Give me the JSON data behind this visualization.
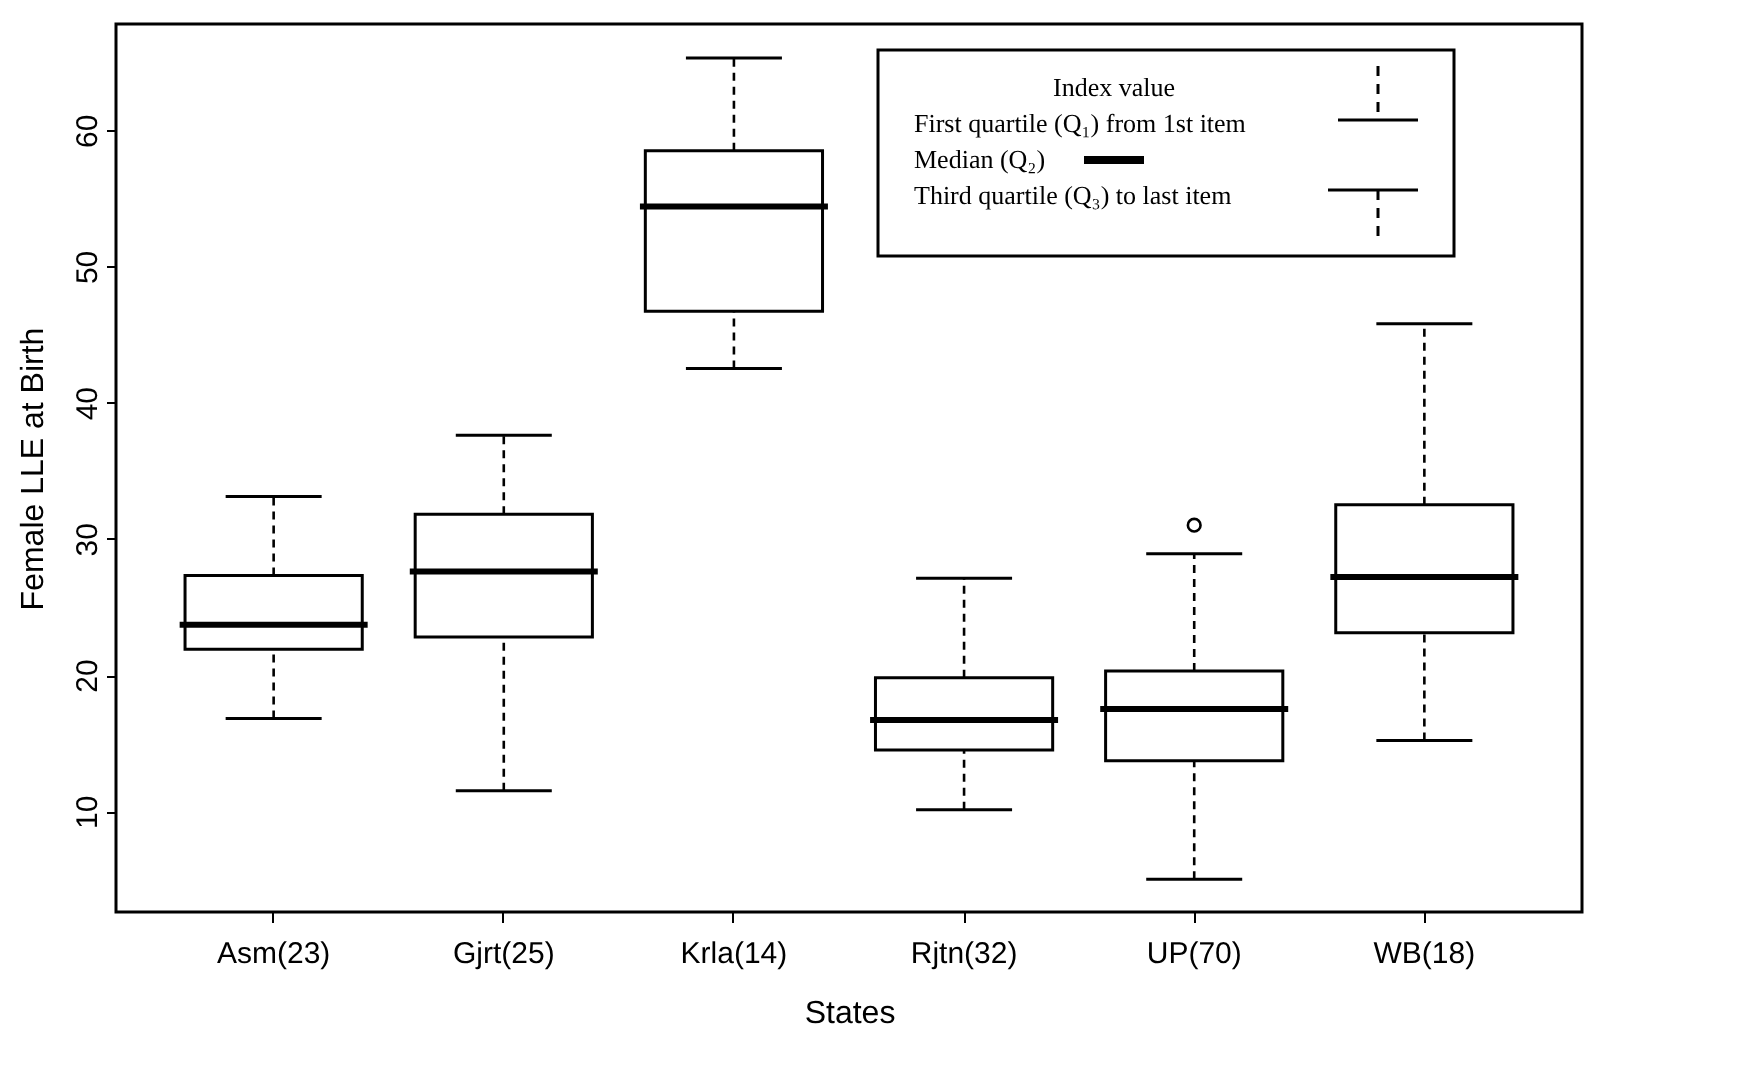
{
  "chart_data": {
    "type": "box",
    "xlabel": "States",
    "ylabel": "Female LLE at Birth",
    "categories": [
      "Asm(23)",
      "Gjrt(25)",
      "Krla(14)",
      "Rjtn(32)",
      "UP(70)",
      "WB(18)"
    ],
    "boxes": [
      {
        "low": 16.8,
        "q1": 21.9,
        "median": 23.7,
        "q3": 27.3,
        "high": 33.1
      },
      {
        "low": 11.5,
        "q1": 22.8,
        "median": 27.6,
        "q3": 31.8,
        "high": 37.6
      },
      {
        "low": 42.5,
        "q1": 46.7,
        "median": 54.4,
        "q3": 58.5,
        "high": 65.3
      },
      {
        "low": 10.1,
        "q1": 14.5,
        "median": 16.7,
        "q3": 19.8,
        "high": 27.1
      },
      {
        "low": 5.0,
        "q1": 13.7,
        "median": 17.5,
        "q3": 20.3,
        "high": 28.9,
        "outliers": [
          31.0
        ]
      },
      {
        "low": 15.2,
        "q1": 23.1,
        "median": 27.2,
        "q3": 32.5,
        "high": 45.8
      }
    ],
    "ylim": [
      2.6,
      67.8
    ],
    "yticks": [
      10,
      20,
      30,
      40,
      50,
      60
    ],
    "grid": false,
    "annotations": [
      "Index value",
      "First quartile (Q₁) from 1st item",
      "Median (Q₂)",
      "Third quartile (Q₃) to last item"
    ]
  }
}
